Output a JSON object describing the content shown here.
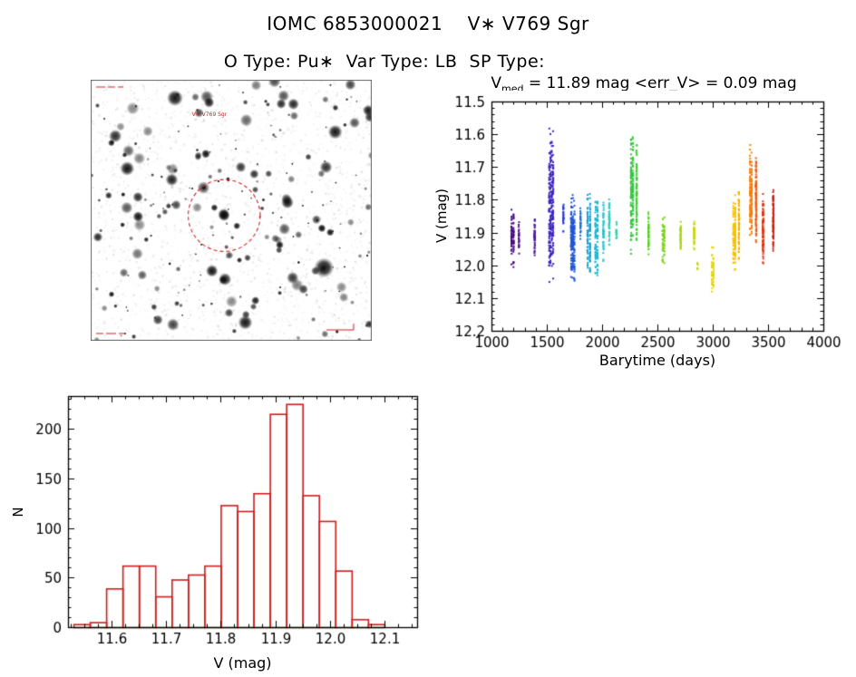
{
  "header": {
    "title": "IOMC 6853000021    V∗ V769 Sgr",
    "subtitle": "O Type: Pu∗  Var Type: LB  SP Type:"
  },
  "finder": {
    "target_label": "V∗ V769 Sgr",
    "circle_color": "#cc2222",
    "annotation_color": "#cc2222"
  },
  "chart_data": [
    {
      "type": "scatter",
      "title": "V_med = 11.89 mag <err_V> = 0.09 mag",
      "title_v": "V",
      "title_sub": "med",
      "title_rest": " = 11.89 mag <err_V> = 0.09 mag",
      "v_med": 11.89,
      "err_v": 0.09,
      "xlabel": "Barytime (days)",
      "ylabel": "V (mag)",
      "xlim": [
        1000,
        4000
      ],
      "x_minor": 100,
      "xticks": [
        1000,
        1500,
        2000,
        2500,
        3000,
        3500,
        4000
      ],
      "y_top": 11.5,
      "y_bottom": 12.2,
      "y_minor": 0.02,
      "yticks": [
        11.5,
        11.6,
        11.7,
        11.8,
        11.9,
        12.0,
        12.1,
        12.2
      ],
      "clusters": [
        {
          "x": 1190,
          "spread": 18,
          "vmin": 11.83,
          "vmax": 12.01,
          "n": 80,
          "color": "#4a0e86"
        },
        {
          "x": 1248,
          "spread": 6,
          "vmin": 11.86,
          "vmax": 11.97,
          "n": 22,
          "color": "#4c0f90"
        },
        {
          "x": 1390,
          "spread": 10,
          "vmin": 11.84,
          "vmax": 11.98,
          "n": 40,
          "color": "#451a9e"
        },
        {
          "x": 1540,
          "spread": 34,
          "vmin": 11.57,
          "vmax": 12.06,
          "n": 240,
          "color": "#3c25c2"
        },
        {
          "x": 1650,
          "spread": 8,
          "vmin": 11.8,
          "vmax": 11.91,
          "n": 25,
          "color": "#2e3ccd"
        },
        {
          "x": 1735,
          "spread": 28,
          "vmin": 11.78,
          "vmax": 12.06,
          "n": 170,
          "color": "#2055d8"
        },
        {
          "x": 1805,
          "spread": 8,
          "vmin": 11.8,
          "vmax": 11.93,
          "n": 30,
          "color": "#1a6fd6"
        },
        {
          "x": 1880,
          "spread": 22,
          "vmin": 11.76,
          "vmax": 12.04,
          "n": 120,
          "color": "#17a0d4"
        },
        {
          "x": 1950,
          "spread": 18,
          "vmin": 11.78,
          "vmax": 12.05,
          "n": 110,
          "color": "#1ab8d6"
        },
        {
          "x": 2012,
          "spread": 10,
          "vmin": 11.8,
          "vmax": 12.02,
          "n": 50,
          "color": "#25c4cd"
        },
        {
          "x": 2065,
          "spread": 12,
          "vmin": 11.79,
          "vmax": 11.94,
          "n": 60,
          "color": "#2fcfc0"
        },
        {
          "x": 2130,
          "spread": 5,
          "vmin": 11.85,
          "vmax": 11.95,
          "n": 15,
          "color": "#33d0a6"
        },
        {
          "x": 2270,
          "spread": 16,
          "vmin": 11.57,
          "vmax": 11.97,
          "n": 150,
          "color": "#30c93c"
        },
        {
          "x": 2312,
          "spread": 10,
          "vmin": 11.62,
          "vmax": 11.95,
          "n": 80,
          "color": "#3dcf2d"
        },
        {
          "x": 2420,
          "spread": 12,
          "vmin": 11.83,
          "vmax": 11.97,
          "n": 55,
          "color": "#57d224"
        },
        {
          "x": 2555,
          "spread": 14,
          "vmin": 11.84,
          "vmax": 12.01,
          "n": 60,
          "color": "#7ed41c"
        },
        {
          "x": 2710,
          "spread": 12,
          "vmin": 11.86,
          "vmax": 11.97,
          "n": 40,
          "color": "#a6d714"
        },
        {
          "x": 2832,
          "spread": 12,
          "vmin": 11.84,
          "vmax": 11.96,
          "n": 40,
          "color": "#c5d90e"
        },
        {
          "x": 2862,
          "spread": 4,
          "vmin": 11.99,
          "vmax": 12.02,
          "n": 6,
          "color": "#c5d90e"
        },
        {
          "x": 3000,
          "spread": 14,
          "vmin": 11.92,
          "vmax": 12.11,
          "n": 45,
          "color": "#e7d606"
        },
        {
          "x": 3195,
          "spread": 16,
          "vmin": 11.78,
          "vmax": 12.02,
          "n": 110,
          "color": "#f3c303"
        },
        {
          "x": 3237,
          "spread": 10,
          "vmin": 11.75,
          "vmax": 11.99,
          "n": 60,
          "color": "#fcae00"
        },
        {
          "x": 3345,
          "spread": 14,
          "vmin": 11.61,
          "vmax": 11.94,
          "n": 130,
          "color": "#fb7d05"
        },
        {
          "x": 3392,
          "spread": 10,
          "vmin": 11.63,
          "vmax": 11.95,
          "n": 80,
          "color": "#f2530a"
        },
        {
          "x": 3455,
          "spread": 12,
          "vmin": 11.78,
          "vmax": 12.0,
          "n": 80,
          "color": "#e23111"
        },
        {
          "x": 3548,
          "spread": 10,
          "vmin": 11.76,
          "vmax": 11.96,
          "n": 90,
          "color": "#d51f10"
        }
      ]
    },
    {
      "type": "histogram",
      "xlabel": "V (mag)",
      "ylabel": "N",
      "xlim": [
        11.52,
        12.16
      ],
      "x_minor": 0.025,
      "xticks": [
        11.6,
        11.7,
        11.8,
        11.9,
        12.0,
        12.1
      ],
      "ylim": [
        0,
        233
      ],
      "y_minor": 10,
      "yticks": [
        0,
        50,
        100,
        150,
        200
      ],
      "bin_start": 11.53,
      "bin_width": 0.03,
      "counts": [
        3,
        5,
        39,
        62,
        62,
        31,
        48,
        53,
        62,
        123,
        117,
        135,
        215,
        225,
        133,
        107,
        57,
        8,
        3
      ],
      "color": "#cf1d1d"
    }
  ]
}
